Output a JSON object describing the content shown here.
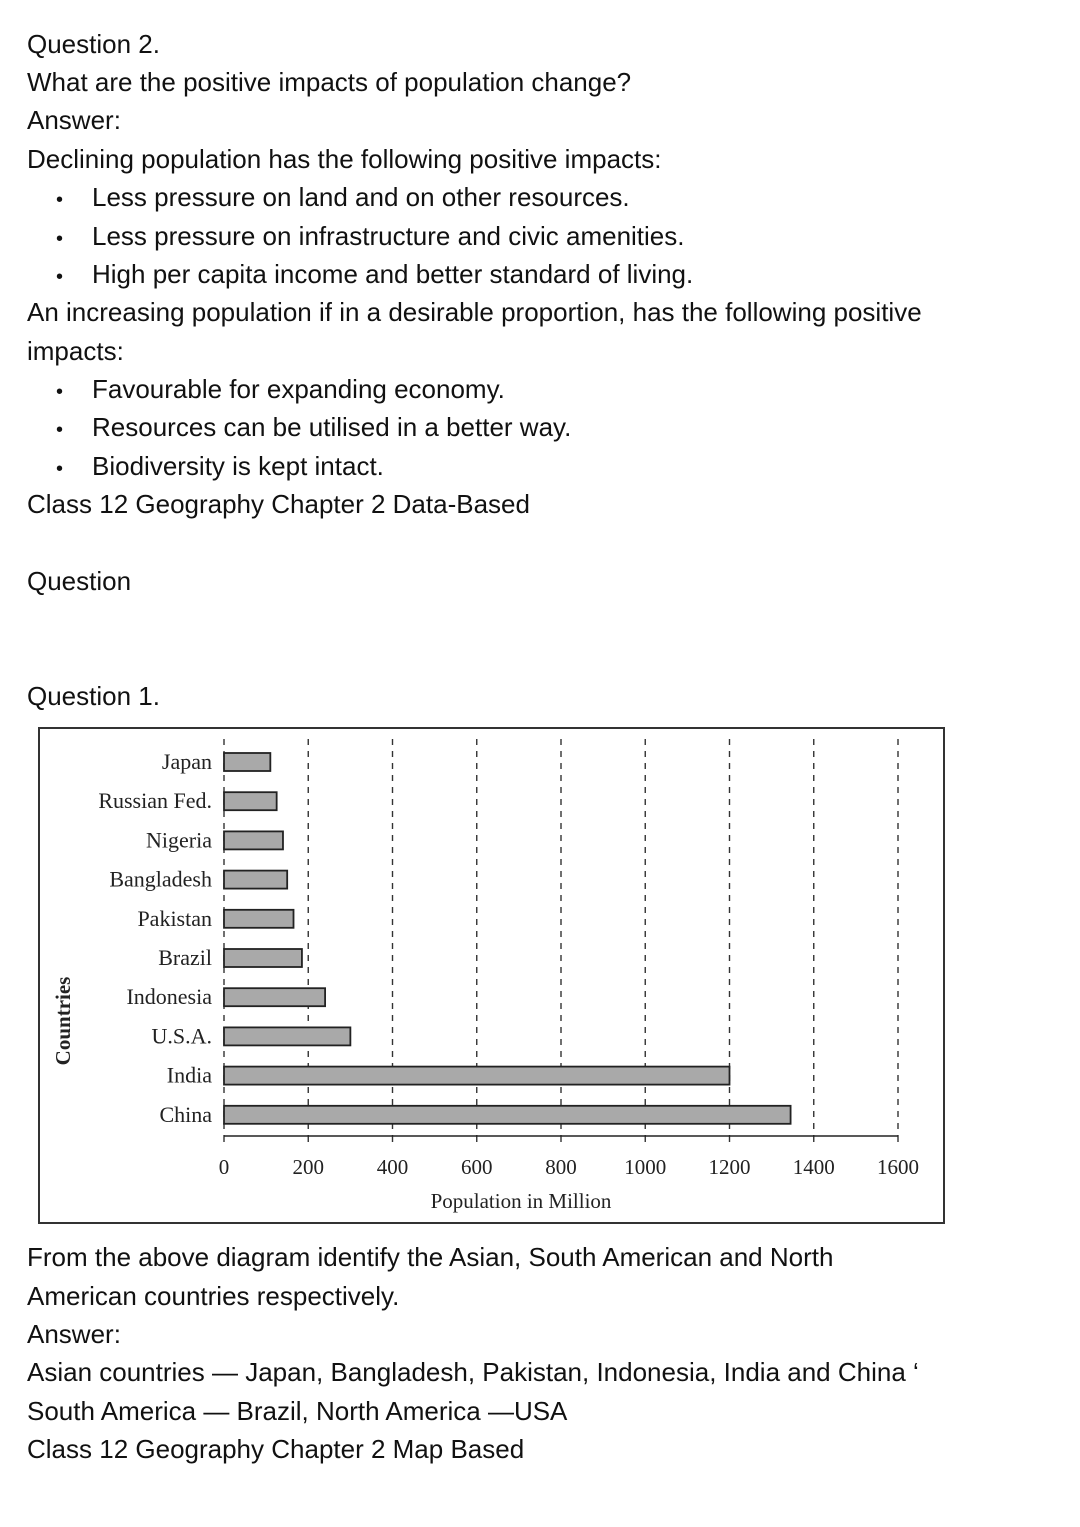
{
  "section_top": {
    "question_label": "Question 2.",
    "question_text": "What are the positive impacts of population change?",
    "answer_label": "Answer:",
    "declining_intro": "Declining population has the following positive impacts:",
    "declining_items": [
      "Less pressure on land and on other resources.",
      "Less pressure on infrastructure and civic amenities.",
      "High per capita income and better standard of living."
    ],
    "increasing_intro_line1": "An increasing population if in a desirable proportion, has the following positive",
    "increasing_intro_line2": "impacts:",
    "increasing_items": [
      "Favourable for expanding economy.",
      "Resources can be utilised in a better way.",
      "Biodiversity is kept intact."
    ],
    "section_heading": "Class 12 Geography Chapter 2 Data-Based",
    "question_heading": "Question"
  },
  "section_data": {
    "question_label": "Question 1.",
    "question_line1": "From the above diagram identify the Asian, South American and North",
    "question_line2": "American countries respectively.",
    "answer_label": "Answer:",
    "answer_line1": "Asian countries — Japan, Bangladesh, Pakistan, Indonesia, India and China ‘",
    "answer_line2": "South America — Brazil, North America —USA",
    "next_heading": "Class 12 Geography Chapter 2 Map Based"
  },
  "chart_data": {
    "type": "bar",
    "orientation": "horizontal",
    "categories": [
      "Japan",
      "Russian Fed.",
      "Nigeria",
      "Bangladesh",
      "Pakistan",
      "Brazil",
      "Indonesia",
      "U.S.A.",
      "India",
      "China"
    ],
    "values": [
      110,
      125,
      140,
      150,
      165,
      185,
      240,
      300,
      1200,
      1345
    ],
    "xlabel": "Population in Million",
    "ylabel": "Countries",
    "xlim": [
      0,
      1600
    ],
    "xticks": [
      "0",
      "200",
      "400",
      "600",
      "800",
      "1000",
      "1200",
      "1400",
      "1600"
    ],
    "grid": "vertical dashed",
    "colors": {
      "bar_fill": "#a9a9a9",
      "bar_stroke": "#222222",
      "grid": "#333333"
    }
  }
}
